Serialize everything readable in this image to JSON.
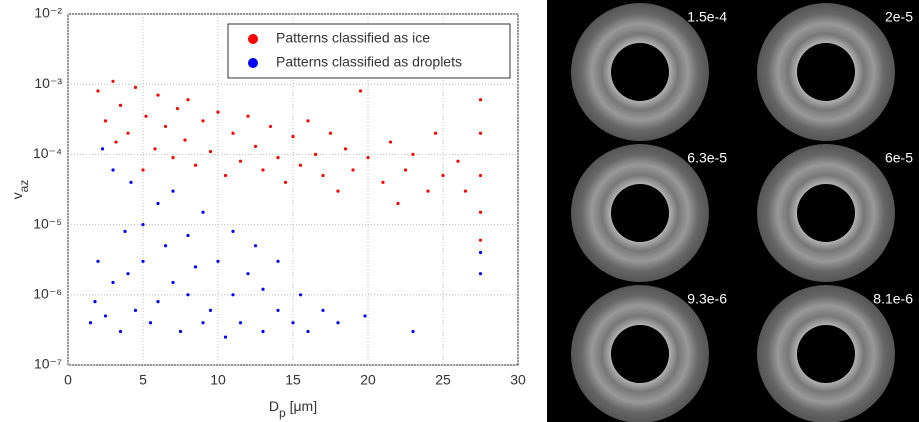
{
  "chart_data": {
    "type": "scatter",
    "x_label": {
      "main": "D",
      "sub": "p",
      "unit": " [μm]"
    },
    "y_label": {
      "main": "v",
      "sub": "az"
    },
    "xlim": [
      0,
      30
    ],
    "xticks": [
      0,
      5,
      10,
      15,
      20,
      25,
      30
    ],
    "ylim": [
      1e-07,
      0.01
    ],
    "log_y": true,
    "yticks": [
      {
        "value": 1e-07,
        "label": "10⁻⁷"
      },
      {
        "value": 1e-06,
        "label": "10⁻⁶"
      },
      {
        "value": 1e-05,
        "label": "10⁻⁵"
      },
      {
        "value": 0.0001,
        "label": "10⁻⁴"
      },
      {
        "value": 0.001,
        "label": "10⁻³"
      },
      {
        "value": 0.01,
        "label": "10⁻²"
      }
    ],
    "grid": true,
    "legend": "upper right",
    "series": [
      {
        "name": "Patterns classified as ice",
        "color": "#ff0000",
        "x": [
          2,
          2.5,
          3,
          3.2,
          3.5,
          4,
          4.5,
          5,
          5.2,
          5.8,
          6,
          6.5,
          7,
          7.3,
          7.8,
          8,
          8.5,
          9,
          9.5,
          10,
          10.5,
          11,
          11.5,
          12,
          12.5,
          13,
          13.5,
          14,
          14.5,
          15,
          15.5,
          16,
          16.5,
          17,
          17.5,
          18,
          18.5,
          19,
          19.5,
          20,
          21,
          21.5,
          22,
          22.5,
          23,
          24,
          24.5,
          25,
          26,
          26.5,
          27.5,
          27.5,
          27.5,
          27.5,
          27.5
        ],
        "values": [
          0.0008,
          0.0003,
          0.0011,
          0.00015,
          0.0005,
          0.0002,
          0.0009,
          6e-05,
          0.00035,
          0.00012,
          0.0007,
          0.00025,
          9e-05,
          0.00045,
          0.00016,
          0.0006,
          7e-05,
          0.0003,
          0.00011,
          0.0004,
          5e-05,
          0.0002,
          8e-05,
          0.00035,
          0.00013,
          6e-05,
          0.00025,
          9e-05,
          4e-05,
          0.00018,
          7e-05,
          0.0003,
          0.0001,
          5e-05,
          0.0002,
          3e-05,
          0.00012,
          6e-05,
          0.0008,
          9e-05,
          4e-05,
          0.00015,
          2e-05,
          6e-05,
          0.0001,
          3e-05,
          0.0002,
          5e-05,
          8e-05,
          3e-05,
          0.0006,
          0.0002,
          5e-05,
          1.5e-05,
          6e-06
        ]
      },
      {
        "name": "Patterns classified as droplets",
        "color": "#0000ff",
        "x": [
          1.5,
          1.8,
          2,
          2.3,
          2.5,
          3,
          3,
          3.5,
          3.8,
          4,
          4.2,
          4.5,
          5,
          5,
          5.5,
          6,
          6,
          6.5,
          7,
          7,
          7.5,
          8,
          8,
          8.5,
          9,
          9,
          9.5,
          10,
          10.5,
          11,
          11,
          11.5,
          12,
          12.5,
          13,
          13,
          14,
          14,
          15,
          15.5,
          16,
          17,
          18,
          19.8,
          23,
          27.5,
          27.5
        ],
        "values": [
          4e-07,
          8e-07,
          3e-06,
          0.00012,
          5e-07,
          1.5e-06,
          6e-05,
          3e-07,
          8e-06,
          2e-06,
          4e-05,
          6e-07,
          1e-05,
          3e-06,
          4e-07,
          2e-05,
          8e-07,
          5e-06,
          1.5e-06,
          3e-05,
          3e-07,
          7e-06,
          1e-06,
          2.5e-06,
          4e-07,
          1.5e-05,
          6e-07,
          3e-06,
          2.5e-07,
          8e-06,
          1e-06,
          4e-07,
          2e-06,
          5e-06,
          3e-07,
          1.2e-06,
          6e-07,
          3e-06,
          4e-07,
          1e-06,
          3e-07,
          6e-07,
          4e-07,
          5e-07,
          3e-07,
          4e-06,
          2e-06
        ]
      }
    ]
  },
  "images": {
    "labels": [
      "1.5e-4",
      "2e-5",
      "6.3e-5",
      "6e-5",
      "9.3e-6",
      "8.1e-6"
    ]
  }
}
